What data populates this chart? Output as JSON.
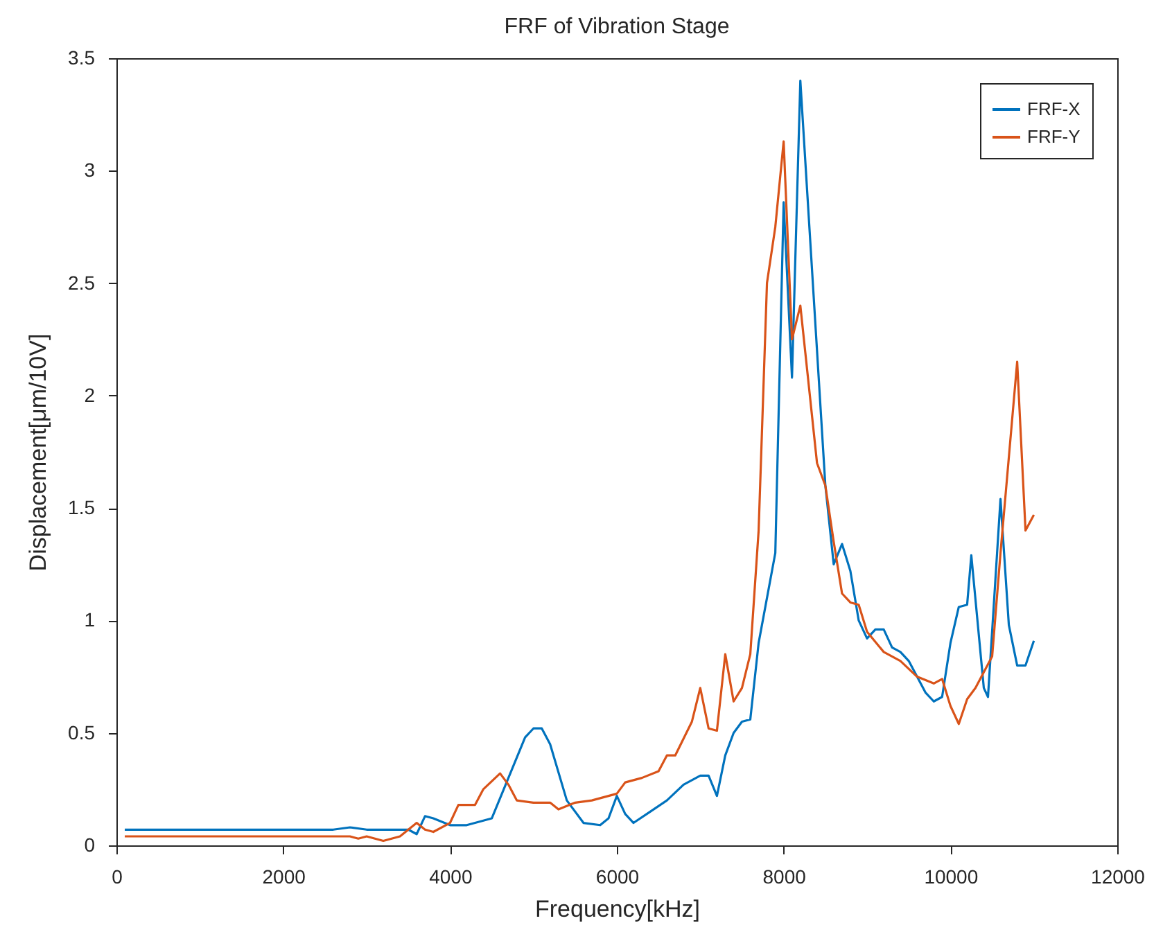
{
  "chart_data": {
    "type": "line",
    "title": "FRF of Vibration Stage",
    "xlabel": "Frequency[kHz]",
    "ylabel": "Displacement[μm/10V]",
    "xlim": [
      0,
      12000
    ],
    "xticks": [
      0,
      2000,
      4000,
      6000,
      8000,
      10000,
      12000
    ],
    "ylim": [
      0,
      3.5
    ],
    "yticks": [
      0,
      0.5,
      1,
      1.5,
      2,
      2.5,
      3,
      3.5
    ],
    "grid": false,
    "legend": "top right",
    "line_style": "solid",
    "marker": "none",
    "series": [
      {
        "name": "FRF-X",
        "color": "#0072bd",
        "x": [
          100,
          1000,
          2000,
          2600,
          2800,
          3000,
          3500,
          3600,
          3700,
          3800,
          4000,
          4200,
          4500,
          4700,
          4900,
          5000,
          5100,
          5200,
          5400,
          5600,
          5800,
          5900,
          6000,
          6100,
          6200,
          6400,
          6600,
          6800,
          7000,
          7100,
          7200,
          7300,
          7400,
          7500,
          7600,
          7700,
          7900,
          8000,
          8100,
          8200,
          8300,
          8400,
          8500,
          8600,
          8700,
          8800,
          8900,
          9000,
          9100,
          9200,
          9300,
          9400,
          9500,
          9600,
          9700,
          9800,
          9900,
          10000,
          10100,
          10200,
          10250,
          10400,
          10450,
          10600,
          10700,
          10800,
          10900,
          11000
        ],
        "values": [
          0.07,
          0.07,
          0.07,
          0.07,
          0.08,
          0.07,
          0.07,
          0.05,
          0.13,
          0.12,
          0.09,
          0.09,
          0.12,
          0.3,
          0.48,
          0.52,
          0.52,
          0.45,
          0.2,
          0.1,
          0.09,
          0.12,
          0.22,
          0.14,
          0.1,
          0.15,
          0.2,
          0.27,
          0.31,
          0.31,
          0.22,
          0.4,
          0.5,
          0.55,
          0.56,
          0.9,
          1.3,
          2.86,
          2.08,
          3.4,
          2.8,
          2.2,
          1.6,
          1.25,
          1.34,
          1.22,
          1.0,
          0.92,
          0.96,
          0.96,
          0.88,
          0.86,
          0.82,
          0.75,
          0.68,
          0.64,
          0.66,
          0.9,
          1.06,
          1.07,
          1.29,
          0.7,
          0.66,
          1.54,
          0.98,
          0.8,
          0.8,
          0.91
        ]
      },
      {
        "name": "FRF-Y",
        "color": "#d95319",
        "x": [
          100,
          1000,
          2000,
          2800,
          2900,
          3000,
          3200,
          3400,
          3600,
          3700,
          3800,
          4000,
          4100,
          4300,
          4400,
          4600,
          4700,
          4800,
          5000,
          5200,
          5300,
          5500,
          5700,
          5900,
          6000,
          6100,
          6300,
          6500,
          6600,
          6700,
          6900,
          7000,
          7100,
          7200,
          7300,
          7400,
          7500,
          7600,
          7700,
          7800,
          7900,
          8000,
          8100,
          8200,
          8400,
          8500,
          8600,
          8700,
          8800,
          8900,
          9000,
          9200,
          9400,
          9600,
          9800,
          9900,
          10000,
          10100,
          10200,
          10300,
          10500,
          10600,
          10800,
          10900,
          11000
        ],
        "values": [
          0.04,
          0.04,
          0.04,
          0.04,
          0.03,
          0.04,
          0.02,
          0.04,
          0.1,
          0.07,
          0.06,
          0.1,
          0.18,
          0.18,
          0.25,
          0.32,
          0.27,
          0.2,
          0.19,
          0.19,
          0.16,
          0.19,
          0.2,
          0.22,
          0.23,
          0.28,
          0.3,
          0.33,
          0.4,
          0.4,
          0.55,
          0.7,
          0.52,
          0.51,
          0.85,
          0.64,
          0.7,
          0.85,
          1.4,
          2.5,
          2.75,
          3.13,
          2.25,
          2.4,
          1.7,
          1.6,
          1.35,
          1.12,
          1.08,
          1.07,
          0.95,
          0.86,
          0.82,
          0.75,
          0.72,
          0.74,
          0.62,
          0.54,
          0.65,
          0.7,
          0.84,
          1.3,
          2.15,
          1.4,
          1.47
        ]
      }
    ]
  }
}
